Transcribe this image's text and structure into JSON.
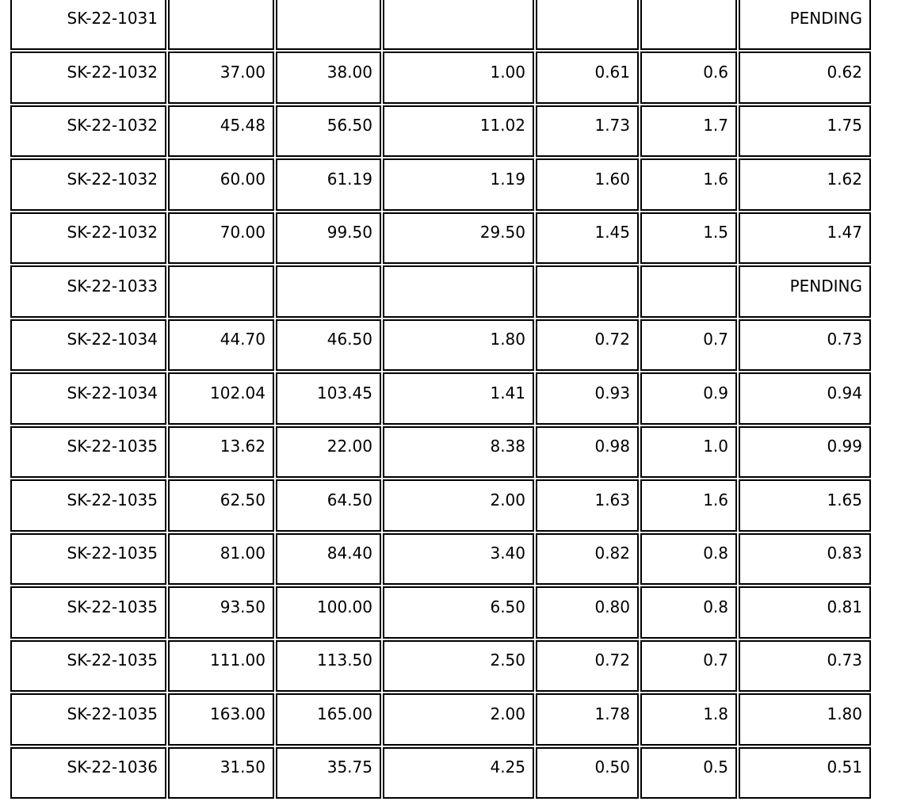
{
  "colors": {
    "background": "#ffffff",
    "border": "#000000",
    "text": "#000000"
  },
  "table": {
    "columns_visible_count": 7,
    "status_label": "PENDING",
    "rows": [
      [
        "SK-22-1031",
        "",
        "",
        "",
        "",
        "",
        "PENDING"
      ],
      [
        "SK-22-1032",
        "37.00",
        "38.00",
        "1.00",
        "0.61",
        "0.6",
        "0.62"
      ],
      [
        "SK-22-1032",
        "45.48",
        "56.50",
        "11.02",
        "1.73",
        "1.7",
        "1.75"
      ],
      [
        "SK-22-1032",
        "60.00",
        "61.19",
        "1.19",
        "1.60",
        "1.6",
        "1.62"
      ],
      [
        "SK-22-1032",
        "70.00",
        "99.50",
        "29.50",
        "1.45",
        "1.5",
        "1.47"
      ],
      [
        "SK-22-1033",
        "",
        "",
        "",
        "",
        "",
        "PENDING"
      ],
      [
        "SK-22-1034",
        "44.70",
        "46.50",
        "1.80",
        "0.72",
        "0.7",
        "0.73"
      ],
      [
        "SK-22-1034",
        "102.04",
        "103.45",
        "1.41",
        "0.93",
        "0.9",
        "0.94"
      ],
      [
        "SK-22-1035",
        "13.62",
        "22.00",
        "8.38",
        "0.98",
        "1.0",
        "0.99"
      ],
      [
        "SK-22-1035",
        "62.50",
        "64.50",
        "2.00",
        "1.63",
        "1.6",
        "1.65"
      ],
      [
        "SK-22-1035",
        "81.00",
        "84.40",
        "3.40",
        "0.82",
        "0.8",
        "0.83"
      ],
      [
        "SK-22-1035",
        "93.50",
        "100.00",
        "6.50",
        "0.80",
        "0.8",
        "0.81"
      ],
      [
        "SK-22-1035",
        "111.00",
        "113.50",
        "2.50",
        "0.72",
        "0.7",
        "0.73"
      ],
      [
        "SK-22-1035",
        "163.00",
        "165.00",
        "2.00",
        "1.78",
        "1.8",
        "1.80"
      ],
      [
        "SK-22-1036",
        "31.50",
        "35.75",
        "4.25",
        "0.50",
        "0.5",
        "0.51"
      ]
    ]
  }
}
